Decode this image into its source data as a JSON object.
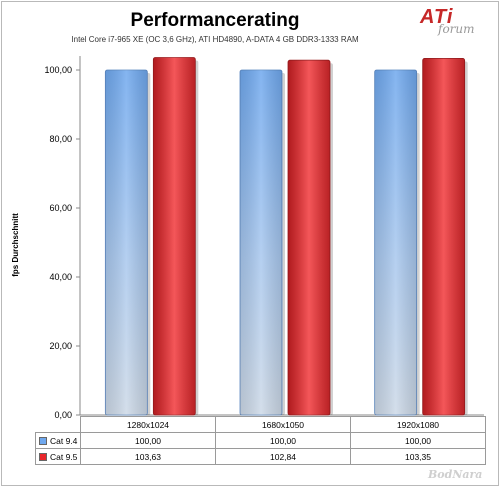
{
  "logo": {
    "brand": "ATi",
    "subtext": "forum"
  },
  "watermark": "BodNara",
  "chart_data": {
    "type": "bar",
    "title": "Performancerating",
    "subtitle": "Intel Core i7-965 XE (OC 3,6 GHz), ATI HD4890, A-DATA 4 GB DDR3-1333 RAM",
    "xlabel": "",
    "ylabel": "fps Durchschnitt",
    "ylim": [
      0,
      100
    ],
    "yticks": [
      "0,00",
      "20,00",
      "40,00",
      "60,00",
      "80,00",
      "100,00"
    ],
    "categories": [
      "1280x1024",
      "1680x1050",
      "1920x1080"
    ],
    "series": [
      {
        "name": "Cat 9.4",
        "values": [
          100.0,
          100.0,
          100.0
        ],
        "labels": [
          "100,00",
          "100,00",
          "100,00"
        ],
        "color": "#6fa8ee"
      },
      {
        "name": "Cat 9.5",
        "values": [
          103.63,
          102.84,
          103.35
        ],
        "labels": [
          "103,63",
          "102,84",
          "103,35"
        ],
        "color": "#e8262b"
      }
    ],
    "grid": false,
    "legend": "data-table-below"
  }
}
